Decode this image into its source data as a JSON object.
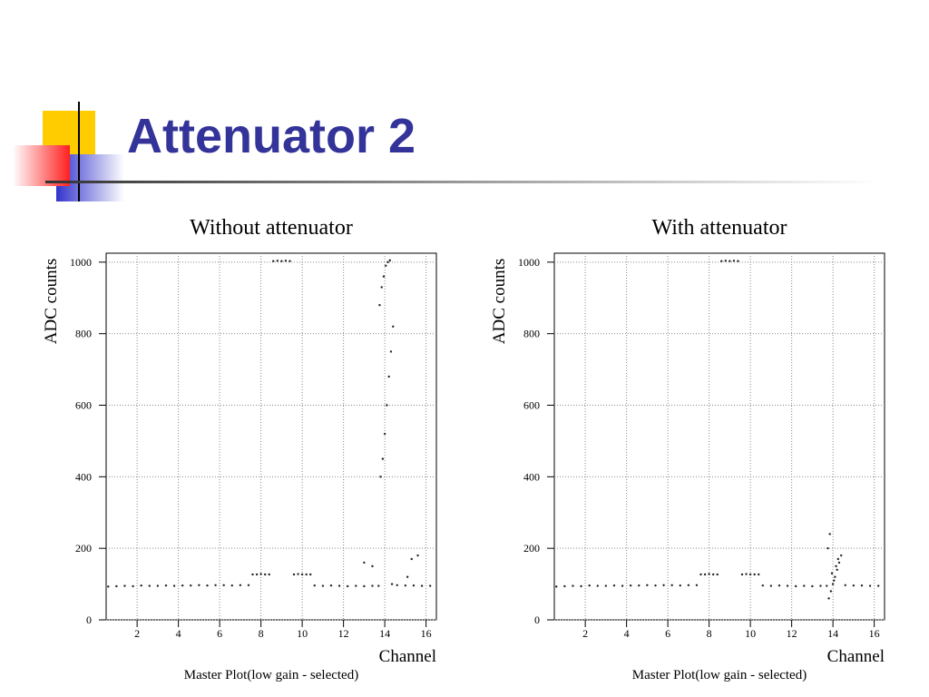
{
  "title": "Attenuator 2",
  "chart_data": [
    {
      "type": "scatter",
      "title": "Without attenuator",
      "y_label": "ADC counts",
      "x_label": "Channel",
      "caption": "Master Plot(low gain - selected)",
      "color": "#222222",
      "grid": true,
      "xlim": [
        0.5,
        16.5
      ],
      "ylim": [
        0,
        1025
      ],
      "xticks": [
        2,
        4,
        6,
        8,
        10,
        12,
        14,
        16
      ],
      "yticks": [
        0,
        200,
        400,
        600,
        800,
        1000
      ],
      "x": [
        0.6,
        1.0,
        1.4,
        1.8,
        2.2,
        2.6,
        3.0,
        3.4,
        3.8,
        4.2,
        4.6,
        5.0,
        5.4,
        5.8,
        6.2,
        6.6,
        7.0,
        7.4,
        7.6,
        7.8,
        8.0,
        8.2,
        8.4,
        8.6,
        8.8,
        9.0,
        9.2,
        9.4,
        9.6,
        9.8,
        10.0,
        10.2,
        10.4,
        10.6,
        11.0,
        11.4,
        11.8,
        12.2,
        12.6,
        13.0,
        13.4,
        13.0,
        13.4,
        13.7,
        13.8,
        13.9,
        14.0,
        14.1,
        14.2,
        14.3,
        14.4,
        13.75,
        13.85,
        13.95,
        14.05,
        14.15,
        14.25,
        14.35,
        14.6,
        15.0,
        15.4,
        15.8,
        16.2,
        15.1,
        15.3,
        15.6
      ],
      "values": [
        93,
        94,
        95,
        94,
        96,
        95,
        95,
        96,
        95,
        96,
        96,
        97,
        96,
        97,
        97,
        96,
        97,
        97,
        127,
        127,
        128,
        127,
        127,
        1003,
        1004,
        1003,
        1004,
        1003,
        127,
        128,
        127,
        127,
        127,
        96,
        95,
        96,
        95,
        94,
        95,
        94,
        95,
        160,
        150,
        95,
        400,
        450,
        520,
        600,
        680,
        750,
        820,
        880,
        930,
        960,
        990,
        1000,
        1005,
        100,
        97,
        96,
        96,
        95,
        95,
        120,
        170,
        180
      ]
    },
    {
      "type": "scatter",
      "title": "With attenuator",
      "y_label": "ADC counts",
      "x_label": "Channel",
      "caption": "Master Plot(low gain - selected)",
      "color": "#222222",
      "grid": true,
      "xlim": [
        0.5,
        16.5
      ],
      "ylim": [
        0,
        1025
      ],
      "xticks": [
        2,
        4,
        6,
        8,
        10,
        12,
        14,
        16
      ],
      "yticks": [
        0,
        200,
        400,
        600,
        800,
        1000
      ],
      "x": [
        0.6,
        1.0,
        1.4,
        1.8,
        2.2,
        2.6,
        3.0,
        3.4,
        3.8,
        4.2,
        4.6,
        5.0,
        5.4,
        5.8,
        6.2,
        6.6,
        7.0,
        7.4,
        7.6,
        7.8,
        8.0,
        8.2,
        8.4,
        8.6,
        8.8,
        9.0,
        9.2,
        9.4,
        9.6,
        9.8,
        10.0,
        10.2,
        10.4,
        10.6,
        11.0,
        11.4,
        11.8,
        12.2,
        12.6,
        13.0,
        13.4,
        13.7,
        13.8,
        13.9,
        14.0,
        14.1,
        14.2,
        14.3,
        14.4,
        13.75,
        13.85,
        13.95,
        14.05,
        14.15,
        14.25,
        14.6,
        15.0,
        15.4,
        15.8,
        16.2
      ],
      "values": [
        93,
        94,
        95,
        94,
        96,
        95,
        95,
        96,
        95,
        96,
        96,
        97,
        96,
        97,
        97,
        96,
        97,
        97,
        127,
        127,
        128,
        127,
        127,
        1003,
        1004,
        1003,
        1004,
        1003,
        127,
        128,
        127,
        127,
        127,
        96,
        95,
        96,
        95,
        94,
        95,
        94,
        95,
        95,
        60,
        80,
        100,
        120,
        140,
        160,
        180,
        200,
        240,
        130,
        110,
        150,
        170,
        97,
        96,
        96,
        95,
        95
      ]
    }
  ]
}
